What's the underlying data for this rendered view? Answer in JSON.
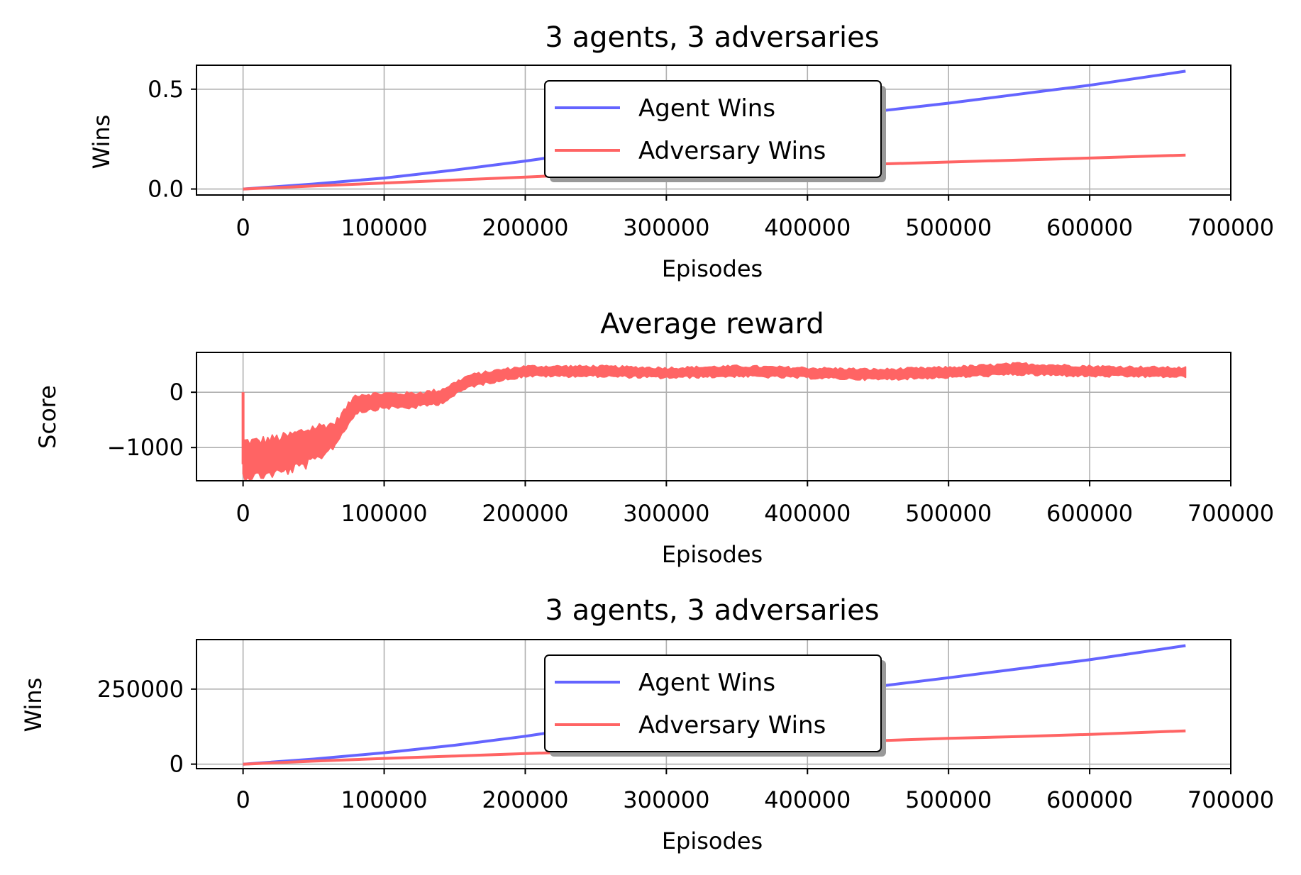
{
  "chart_data": [
    {
      "type": "line",
      "title": "3 agents, 3 adversaries",
      "xlabel": "Episodes",
      "ylabel": "Wins",
      "xlim": [
        -33000,
        700000
      ],
      "ylim": [
        -0.03,
        0.62
      ],
      "xticks": [
        0,
        100000,
        200000,
        300000,
        400000,
        500000,
        600000,
        700000
      ],
      "xtick_labels": [
        "0",
        "100000",
        "200000",
        "300000",
        "400000",
        "500000",
        "600000",
        "700000"
      ],
      "yticks": [
        0.0,
        0.5
      ],
      "ytick_labels": [
        "0.0",
        "0.5"
      ],
      "grid": true,
      "legend": "upper center",
      "x": [
        0,
        50000,
        100000,
        150000,
        200000,
        250000,
        300000,
        350000,
        400000,
        450000,
        500000,
        550000,
        600000,
        668000
      ],
      "series": [
        {
          "name": "Agent Wins",
          "color": "#6464ff",
          "values": [
            0.0,
            0.025,
            0.055,
            0.095,
            0.14,
            0.19,
            0.245,
            0.295,
            0.345,
            0.39,
            0.43,
            0.475,
            0.52,
            0.59
          ]
        },
        {
          "name": "Adversary Wins",
          "color": "#ff6464",
          "values": [
            0.0,
            0.015,
            0.03,
            0.045,
            0.06,
            0.075,
            0.09,
            0.105,
            0.115,
            0.125,
            0.135,
            0.145,
            0.155,
            0.17
          ]
        }
      ]
    },
    {
      "type": "line",
      "title": "Average reward",
      "xlabel": "Episodes",
      "ylabel": "Score",
      "xlim": [
        -33000,
        700000
      ],
      "ylim": [
        -1600,
        720
      ],
      "xticks": [
        0,
        100000,
        200000,
        300000,
        400000,
        500000,
        600000,
        700000
      ],
      "xtick_labels": [
        "0",
        "100000",
        "200000",
        "300000",
        "400000",
        "500000",
        "600000",
        "700000"
      ],
      "yticks": [
        -1000,
        0
      ],
      "ytick_labels": [
        "−1000",
        "0"
      ],
      "grid": true,
      "band": true,
      "x": [
        0,
        10000,
        30000,
        50000,
        65000,
        80000,
        100000,
        120000,
        140000,
        160000,
        180000,
        200000,
        250000,
        300000,
        350000,
        400000,
        450000,
        500000,
        550000,
        600000,
        668000
      ],
      "series": [
        {
          "name": "",
          "color": "#ff6464",
          "mean": [
            -1200,
            -1200,
            -1120,
            -950,
            -760,
            -200,
            -150,
            -150,
            -80,
            200,
            300,
            380,
            380,
            350,
            380,
            350,
            320,
            360,
            420,
            380,
            360
          ],
          "spread": [
            400,
            400,
            400,
            400,
            250,
            200,
            160,
            160,
            150,
            130,
            120,
            110,
            110,
            110,
            110,
            110,
            110,
            110,
            120,
            110,
            100
          ]
        }
      ]
    },
    {
      "type": "line",
      "title": "3 agents, 3 adversaries",
      "xlabel": "Episodes",
      "ylabel": "Wins",
      "xlim": [
        -33000,
        700000
      ],
      "ylim": [
        -15000,
        415000
      ],
      "xticks": [
        0,
        100000,
        200000,
        300000,
        400000,
        500000,
        600000,
        700000
      ],
      "xtick_labels": [
        "0",
        "100000",
        "200000",
        "300000",
        "400000",
        "500000",
        "600000",
        "700000"
      ],
      "yticks": [
        0,
        250000
      ],
      "ytick_labels": [
        "0",
        "250000"
      ],
      "grid": true,
      "legend": "upper center",
      "x": [
        0,
        50000,
        100000,
        150000,
        200000,
        250000,
        300000,
        350000,
        400000,
        450000,
        500000,
        550000,
        600000,
        668000
      ],
      "series": [
        {
          "name": "Agent Wins",
          "color": "#6464ff",
          "values": [
            0,
            17000,
            38000,
            63000,
            93000,
            128000,
            162000,
            196000,
            229000,
            259000,
            288000,
            318000,
            348000,
            395000
          ]
        },
        {
          "name": "Adversary Wins",
          "color": "#ff6464",
          "values": [
            0,
            10000,
            19000,
            27000,
            35000,
            43000,
            51000,
            60000,
            70000,
            78000,
            86000,
            92000,
            99000,
            111000
          ]
        }
      ]
    }
  ]
}
